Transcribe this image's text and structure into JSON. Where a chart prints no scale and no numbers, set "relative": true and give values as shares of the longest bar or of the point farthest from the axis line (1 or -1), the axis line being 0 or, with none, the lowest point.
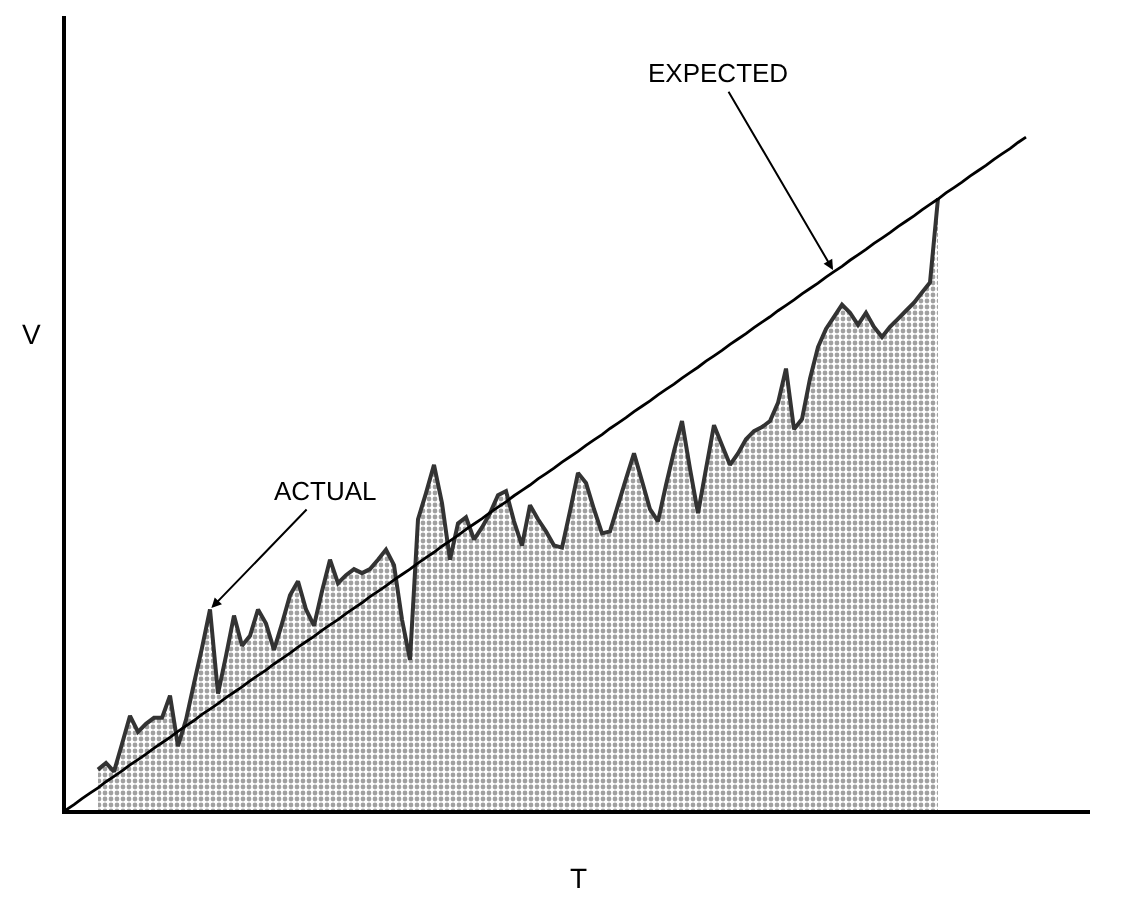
{
  "chart_data": {
    "type": "area",
    "relative": true,
    "xlabel": "T",
    "ylabel": "V",
    "legend": false,
    "marker": "none",
    "categories": [
      null,
      null,
      null,
      null,
      null,
      null,
      null,
      null,
      null,
      null,
      null,
      null,
      null,
      null,
      null,
      null,
      null,
      null,
      null,
      null,
      null,
      null,
      null,
      null,
      null,
      null,
      null,
      null,
      null,
      null,
      null,
      null,
      null,
      null,
      null,
      null,
      null,
      null,
      null,
      null,
      null,
      null,
      null,
      null,
      null,
      null,
      null,
      null,
      null,
      null,
      null,
      null,
      null,
      null,
      null,
      null,
      null,
      null,
      null,
      null,
      null,
      null,
      null,
      null,
      null,
      null,
      null,
      null,
      null,
      null,
      null,
      null,
      null,
      null,
      null,
      null,
      null,
      null,
      null,
      null,
      null,
      null,
      null,
      null,
      null,
      null,
      null,
      null,
      null,
      null,
      null,
      null,
      null,
      null,
      null,
      null,
      null,
      null,
      null,
      null,
      null,
      null,
      null,
      null,
      null,
      null,
      null,
      null,
      null,
      null,
      null,
      null,
      null,
      null,
      null,
      null,
      null,
      null,
      null,
      null,
      null
    ],
    "series": [
      {
        "name": "ACTUAL",
        "color": "#333333",
        "values": [
          null,
          null,
          null,
          null,
          0.06,
          0.07,
          0.057,
          0.098,
          0.14,
          0.116,
          0.128,
          0.137,
          0.137,
          0.17,
          0.095,
          0.134,
          0.188,
          0.241,
          0.298,
          0.173,
          0.229,
          0.289,
          0.244,
          0.259,
          0.298,
          0.277,
          0.238,
          0.277,
          0.319,
          0.34,
          0.298,
          0.274,
          0.325,
          0.372,
          0.337,
          0.349,
          0.358,
          0.352,
          0.358,
          0.372,
          0.387,
          0.364,
          0.283,
          0.223,
          0.432,
          0.471,
          0.513,
          0.456,
          0.372,
          0.426,
          0.435,
          0.402,
          0.42,
          0.441,
          0.468,
          0.474,
          0.429,
          0.393,
          0.453,
          0.432,
          0.414,
          0.393,
          0.39,
          0.444,
          0.501,
          0.486,
          0.447,
          0.411,
          0.414,
          0.453,
          0.492,
          0.53,
          0.489,
          0.447,
          0.429,
          0.483,
          0.533,
          0.578,
          0.507,
          0.441,
          0.507,
          0.572,
          0.542,
          0.513,
          0.53,
          0.551,
          0.563,
          0.569,
          0.578,
          0.605,
          0.656,
          0.566,
          0.581,
          0.641,
          0.688,
          0.715,
          0.733,
          0.751,
          0.739,
          0.721,
          0.739,
          0.718,
          0.703,
          0.718,
          0.73,
          0.742,
          0.754,
          0.769,
          0.784,
          0.909,
          null,
          null,
          null,
          null,
          null,
          null,
          null,
          null,
          null,
          null,
          null
        ]
      },
      {
        "name": "EXPECTED",
        "type": "line",
        "color": "#000000",
        "line_style": "solid",
        "values": [
          0,
          0.008,
          0.017,
          0.025,
          0.033,
          0.042,
          0.05,
          0.058,
          0.067,
          0.075,
          0.083,
          0.092,
          0.1,
          0.108,
          0.117,
          0.125,
          0.133,
          0.142,
          0.15,
          0.158,
          0.167,
          0.175,
          0.183,
          0.192,
          0.2,
          0.208,
          0.217,
          0.225,
          0.233,
          0.242,
          0.25,
          0.258,
          0.267,
          0.275,
          0.283,
          0.292,
          0.3,
          0.308,
          0.317,
          0.325,
          0.333,
          0.342,
          0.35,
          0.358,
          0.367,
          0.375,
          0.383,
          0.392,
          0.4,
          0.408,
          0.417,
          0.425,
          0.433,
          0.442,
          0.45,
          0.458,
          0.467,
          0.475,
          0.483,
          0.492,
          0.5,
          0.508,
          0.517,
          0.525,
          0.533,
          0.542,
          0.55,
          0.558,
          0.567,
          0.575,
          0.583,
          0.592,
          0.6,
          0.608,
          0.617,
          0.625,
          0.633,
          0.642,
          0.65,
          0.658,
          0.667,
          0.675,
          0.683,
          0.692,
          0.7,
          0.708,
          0.717,
          0.725,
          0.733,
          0.742,
          0.75,
          0.758,
          0.767,
          0.775,
          0.783,
          0.792,
          0.8,
          0.808,
          0.817,
          0.825,
          0.833,
          0.842,
          0.85,
          0.858,
          0.867,
          0.875,
          0.883,
          0.892,
          0.9,
          0.908,
          0.917,
          0.925,
          0.933,
          0.942,
          0.95,
          0.958,
          0.967,
          0.975,
          0.983,
          0.992,
          1
        ]
      }
    ]
  }
}
